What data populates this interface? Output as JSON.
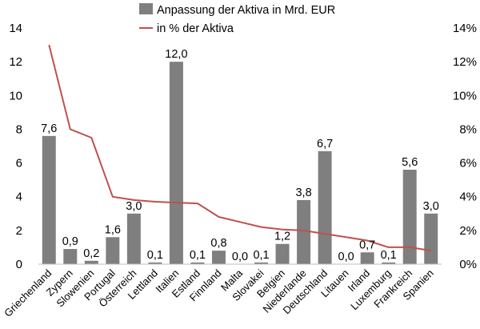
{
  "chart_data": {
    "type": "bar+line",
    "categories": [
      "Griechenland",
      "Zypern",
      "Slowenien",
      "Portugal",
      "Österreich",
      "Lettland",
      "Italien",
      "Estland",
      "Finnland",
      "Malta",
      "Slovakei",
      "Belgien",
      "Niederlande",
      "Deutschland",
      "Litauen",
      "Irland",
      "Luxemburg",
      "Frankreich",
      "Spanien"
    ],
    "series": [
      {
        "name": "Anpassung der Aktiva in Mrd. EUR",
        "type": "bar",
        "axis": "left",
        "color": "#7f7f7f",
        "values": [
          7.6,
          0.9,
          0.2,
          1.6,
          3.0,
          0.1,
          12.0,
          0.1,
          0.8,
          0.0,
          0.1,
          1.2,
          3.8,
          6.7,
          0.0,
          0.7,
          0.1,
          5.6,
          3.0
        ],
        "labels": [
          "7,6",
          "0,9",
          "0,2",
          "1,6",
          "3,0",
          "0,1",
          "12,0",
          "0,1",
          "0,8",
          "0,0",
          "0,1",
          "1,2",
          "3,8",
          "6,7",
          "0,0",
          "0,7",
          "0,1",
          "5,6",
          "3,0"
        ]
      },
      {
        "name": "in % der Aktiva",
        "type": "line",
        "axis": "right",
        "color": "#c0504d",
        "values": [
          13.0,
          8.0,
          7.5,
          4.0,
          3.8,
          3.7,
          3.65,
          3.6,
          2.8,
          2.5,
          2.2,
          2.05,
          2.0,
          1.8,
          1.6,
          1.4,
          1.0,
          1.0,
          0.8
        ]
      }
    ],
    "y_left": {
      "min": 0,
      "max": 14,
      "ticks": [
        "0",
        "2",
        "4",
        "6",
        "8",
        "10",
        "12",
        "14"
      ]
    },
    "y_right": {
      "min": 0,
      "max": 14,
      "ticks": [
        "0%",
        "2%",
        "4%",
        "6%",
        "8%",
        "10%",
        "12%",
        "14%"
      ]
    },
    "legend": {
      "position": "top-center",
      "items": [
        "Anpassung der Aktiva in Mrd. EUR",
        "in % der Aktiva"
      ]
    },
    "grid": false
  }
}
